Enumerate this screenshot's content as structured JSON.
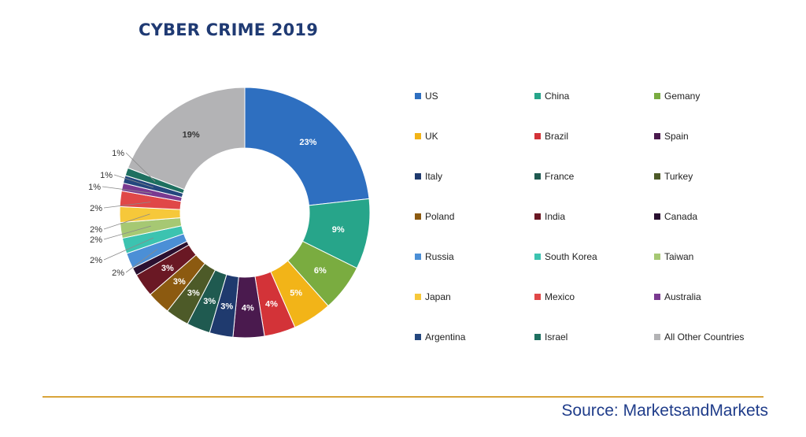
{
  "source": "Source: MarketsandMarkets",
  "chart_data": {
    "type": "pie",
    "variant": "donut",
    "title": "CYBER CRIME 2019",
    "legend_position": "right",
    "slices": [
      {
        "label": "US",
        "value": 23,
        "color": "#2e6fc0",
        "value_label": "23%"
      },
      {
        "label": "China",
        "value": 9,
        "color": "#27a58a",
        "value_label": "9%"
      },
      {
        "label": "Gemany",
        "value": 6,
        "color": "#7aac40",
        "value_label": "6%"
      },
      {
        "label": "UK",
        "value": 5,
        "color": "#f2b418",
        "value_label": "5%"
      },
      {
        "label": "Brazil",
        "value": 4,
        "color": "#d33338",
        "value_label": "4%"
      },
      {
        "label": "Spain",
        "value": 4,
        "color": "#4a1a4e",
        "value_label": "4%"
      },
      {
        "label": "Italy",
        "value": 3,
        "color": "#1f3a6e",
        "value_label": "3%"
      },
      {
        "label": "France",
        "value": 3,
        "color": "#1f5a50",
        "value_label": "3%"
      },
      {
        "label": "Turkey",
        "value": 3,
        "color": "#4d5a28",
        "value_label": "3%"
      },
      {
        "label": "Poland",
        "value": 3,
        "color": "#8c5a10",
        "value_label": "3%"
      },
      {
        "label": "India",
        "value": 3,
        "color": "#6a1824",
        "value_label": "3%"
      },
      {
        "label": "Canada",
        "value": 1,
        "color": "#2a1030",
        "value_label": ""
      },
      {
        "label": "Russia",
        "value": 2,
        "color": "#4b8fd6",
        "value_label": "2%"
      },
      {
        "label": "South Korea",
        "value": 2,
        "color": "#3cc3b0",
        "value_label": "2%"
      },
      {
        "label": "Taiwan",
        "value": 2,
        "color": "#a6c873",
        "value_label": "2%"
      },
      {
        "label": "Japan",
        "value": 2,
        "color": "#f6c83a",
        "value_label": "2%"
      },
      {
        "label": "Mexico",
        "value": 2,
        "color": "#e04848",
        "value_label": "2%"
      },
      {
        "label": "Australia",
        "value": 1,
        "color": "#7a3a90",
        "value_label": "1%"
      },
      {
        "label": "Argentina",
        "value": 1,
        "color": "#24477e",
        "value_label": "1%"
      },
      {
        "label": "Israel",
        "value": 1,
        "color": "#1e7060",
        "value_label": "1%"
      },
      {
        "label": "All Other Countries",
        "value": 19,
        "color": "#b3b3b5",
        "value_label": "19%"
      }
    ]
  }
}
